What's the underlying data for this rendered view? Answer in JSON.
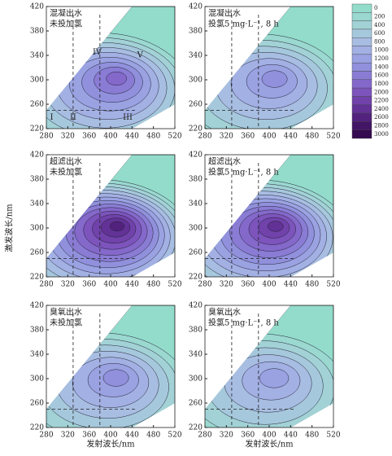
{
  "chart_data": [
    {
      "type": "contour",
      "title_lines": [
        "混凝出水",
        "未投加氯"
      ],
      "xlim": [
        280,
        520
      ],
      "ylim": [
        220,
        420
      ],
      "xticks": [
        280,
        320,
        360,
        400,
        440,
        480,
        520
      ],
      "yticks": [
        220,
        260,
        300,
        340,
        380,
        420
      ],
      "peak": 1800,
      "annotations": [
        "I",
        "II",
        "III",
        "IV",
        "V"
      ],
      "region_lines": {
        "x": [
          330,
          380
        ],
        "y": [
          250
        ]
      }
    },
    {
      "type": "contour",
      "title_lines": [
        "混凝出水",
        "投氯5 mg·L⁻¹, 8 h"
      ],
      "xlim": [
        280,
        520
      ],
      "ylim": [
        220,
        420
      ],
      "xticks": [
        280,
        320,
        360,
        400,
        440,
        480,
        520
      ],
      "yticks": [
        220,
        260,
        300,
        340,
        380,
        420
      ],
      "peak": 1400,
      "region_lines": {
        "x": [
          330,
          380
        ],
        "y": [
          250
        ]
      }
    },
    {
      "type": "contour",
      "title_lines": [
        "超滤出水",
        "未投加氯"
      ],
      "xlim": [
        280,
        520
      ],
      "ylim": [
        220,
        420
      ],
      "xticks": [
        280,
        320,
        360,
        400,
        440,
        480,
        520
      ],
      "yticks": [
        220,
        260,
        300,
        340,
        380,
        420
      ],
      "peak": 2600,
      "region_lines": {
        "x": [
          330,
          380
        ],
        "y": [
          250
        ]
      }
    },
    {
      "type": "contour",
      "title_lines": [
        "超滤出水",
        "投氯5 mg·L⁻¹, 8 h"
      ],
      "xlim": [
        280,
        520
      ],
      "ylim": [
        220,
        420
      ],
      "xticks": [
        280,
        320,
        360,
        400,
        440,
        480,
        520
      ],
      "yticks": [
        220,
        260,
        300,
        340,
        380,
        420
      ],
      "peak": 2400,
      "region_lines": {
        "x": [
          330,
          380
        ],
        "y": [
          250
        ]
      }
    },
    {
      "type": "contour",
      "title_lines": [
        "臭氧出水",
        "未投加氯"
      ],
      "xlim": [
        280,
        520
      ],
      "ylim": [
        220,
        420
      ],
      "xticks": [
        280,
        320,
        360,
        400,
        440,
        480,
        520
      ],
      "yticks": [
        220,
        260,
        300,
        340,
        380,
        420
      ],
      "peak": 1400,
      "region_lines": {
        "x": [
          330,
          380
        ],
        "y": [
          250
        ]
      }
    },
    {
      "type": "contour",
      "title_lines": [
        "臭氧出水",
        "投氯5 mg·L⁻¹, 8 h"
      ],
      "xlim": [
        280,
        520
      ],
      "ylim": [
        220,
        420
      ],
      "xticks": [
        280,
        320,
        360,
        400,
        440,
        480,
        520
      ],
      "yticks": [
        220,
        260,
        300,
        340,
        380,
        420
      ],
      "peak": 1200,
      "region_lines": {
        "x": [
          330,
          380
        ],
        "y": [
          250
        ]
      }
    }
  ],
  "axis_labels": {
    "x": "发射波长/nm",
    "y": "激发波长/nm"
  },
  "colorbar": {
    "levels": [
      0,
      200,
      400,
      600,
      800,
      1000,
      1200,
      1400,
      1600,
      1800,
      2000,
      2200,
      2400,
      2600,
      2800,
      3000
    ],
    "colors": [
      "#93dccb",
      "#9ad8d0",
      "#a2d2d6",
      "#a6c8dc",
      "#a8bde2",
      "#a3b0e4",
      "#9aa2e2",
      "#9090dc",
      "#8a7cd4",
      "#8468ca",
      "#7c54bc",
      "#7042aa",
      "#623296",
      "#52227e",
      "#431566",
      "#350a50"
    ]
  }
}
